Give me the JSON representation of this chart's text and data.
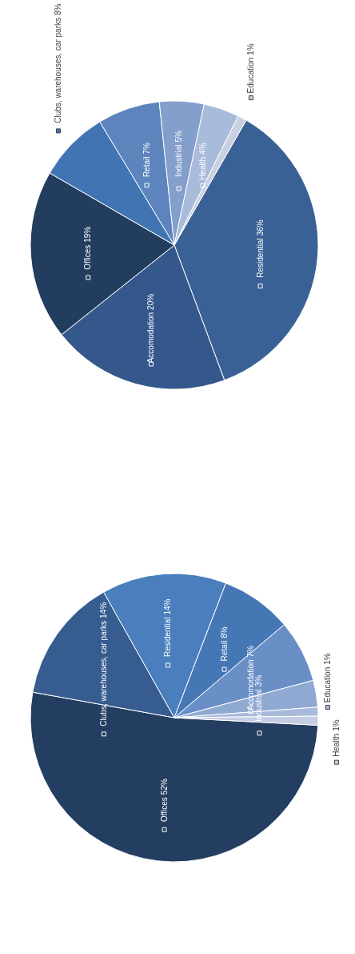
{
  "chart_data": [
    {
      "type": "pie",
      "categories": [
        "Residential",
        "Accomodation",
        "Offices",
        "Clubs, warehouses, car parks",
        "Retail",
        "Industrial",
        "Health",
        "Education"
      ],
      "values": [
        36,
        20,
        19,
        8,
        7,
        5,
        4,
        1
      ],
      "colors": [
        "#3a6196",
        "#34588c",
        "#233d5f",
        "#4174b3",
        "#5d84bd",
        "#849fcc",
        "#a9bbdb",
        "#c9d0e1"
      ],
      "value_labels": [
        "36%",
        "20%",
        "19%",
        "8%",
        "7%",
        "5%",
        "4%",
        "1%"
      ],
      "legend": false
    },
    {
      "type": "pie",
      "categories": [
        "Offices",
        "Clubs, warehouses, car parks",
        "Residential",
        "Retail",
        "Accomodation",
        "Industrial",
        "Education",
        "Health"
      ],
      "values": [
        52,
        14,
        14,
        8,
        7,
        3,
        1,
        1
      ],
      "colors": [
        "#243e61",
        "#365c90",
        "#4a7ebd",
        "#4677b5",
        "#6a8fc7",
        "#90a9d2",
        "#a8badc",
        "#c4cde3"
      ],
      "value_labels": [
        "52%",
        "14%",
        "14%",
        "8%",
        "7%",
        "3%",
        "1%",
        "1%"
      ],
      "legend": false
    }
  ]
}
